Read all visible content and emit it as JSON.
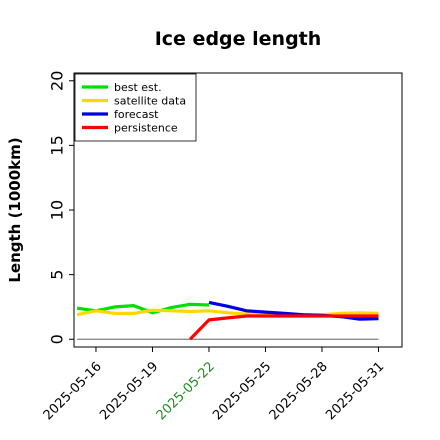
{
  "chart_data": {
    "type": "line",
    "title": "Ice edge length",
    "xlabel": "",
    "ylabel": "Length (1000km)",
    "ylim": [
      -0.6,
      20.6
    ],
    "xlim": [
      "2025-05-14T20:00",
      "2025-06-01T06:00"
    ],
    "yticks": [
      0,
      5,
      10,
      15,
      20
    ],
    "xticks": [
      "2025-05-16",
      "2025-05-19",
      "2025-05-22",
      "2025-05-25",
      "2025-05-28",
      "2025-05-31"
    ],
    "highlight_tick": "2025-05-22",
    "highlight_color": "#228B22",
    "grid": false,
    "legend_position": "top-left",
    "series": [
      {
        "name": "best est.",
        "color": "#00e000",
        "x": [
          "2025-05-15",
          "2025-05-16",
          "2025-05-17",
          "2025-05-18",
          "2025-05-19",
          "2025-05-20",
          "2025-05-21",
          "2025-05-22"
        ],
        "values": [
          2.4,
          2.2,
          2.5,
          2.6,
          2.05,
          2.45,
          2.7,
          2.65
        ]
      },
      {
        "name": "satellite data",
        "color": "#ffd700",
        "x": [
          "2025-05-15",
          "2025-05-16",
          "2025-05-17",
          "2025-05-18",
          "2025-05-19",
          "2025-05-20",
          "2025-05-21",
          "2025-05-22",
          "2025-05-23",
          "2025-05-24",
          "2025-05-25",
          "2025-05-26",
          "2025-05-27",
          "2025-05-28",
          "2025-05-29",
          "2025-05-30",
          "2025-05-31"
        ],
        "values": [
          1.9,
          2.2,
          2.0,
          2.0,
          2.25,
          2.2,
          2.15,
          2.2,
          2.05,
          1.95,
          1.9,
          1.85,
          1.85,
          1.9,
          2.0,
          2.05,
          2.0
        ]
      },
      {
        "name": "forecast",
        "color": "#0000e0",
        "x": [
          "2025-05-22",
          "2025-05-23",
          "2025-05-24",
          "2025-05-25",
          "2025-05-26",
          "2025-05-27",
          "2025-05-28",
          "2025-05-29",
          "2025-05-30",
          "2025-05-31"
        ],
        "values": [
          2.85,
          2.55,
          2.2,
          2.1,
          2.0,
          1.9,
          1.85,
          1.75,
          1.55,
          1.6
        ]
      },
      {
        "name": "persistence",
        "color": "#ff0000",
        "x": [
          "2025-05-21",
          "2025-05-22",
          "2025-05-23",
          "2025-05-24",
          "2025-05-25",
          "2025-05-26",
          "2025-05-27",
          "2025-05-28",
          "2025-05-29",
          "2025-05-30",
          "2025-05-31"
        ],
        "values": [
          0.0,
          1.5,
          1.65,
          1.8,
          1.8,
          1.8,
          1.8,
          1.8,
          1.8,
          1.8,
          1.8
        ]
      }
    ],
    "reference_lines": [
      {
        "y": 0,
        "x": [
          "2025-05-15",
          "2025-05-31"
        ],
        "color": "#808080"
      }
    ]
  }
}
